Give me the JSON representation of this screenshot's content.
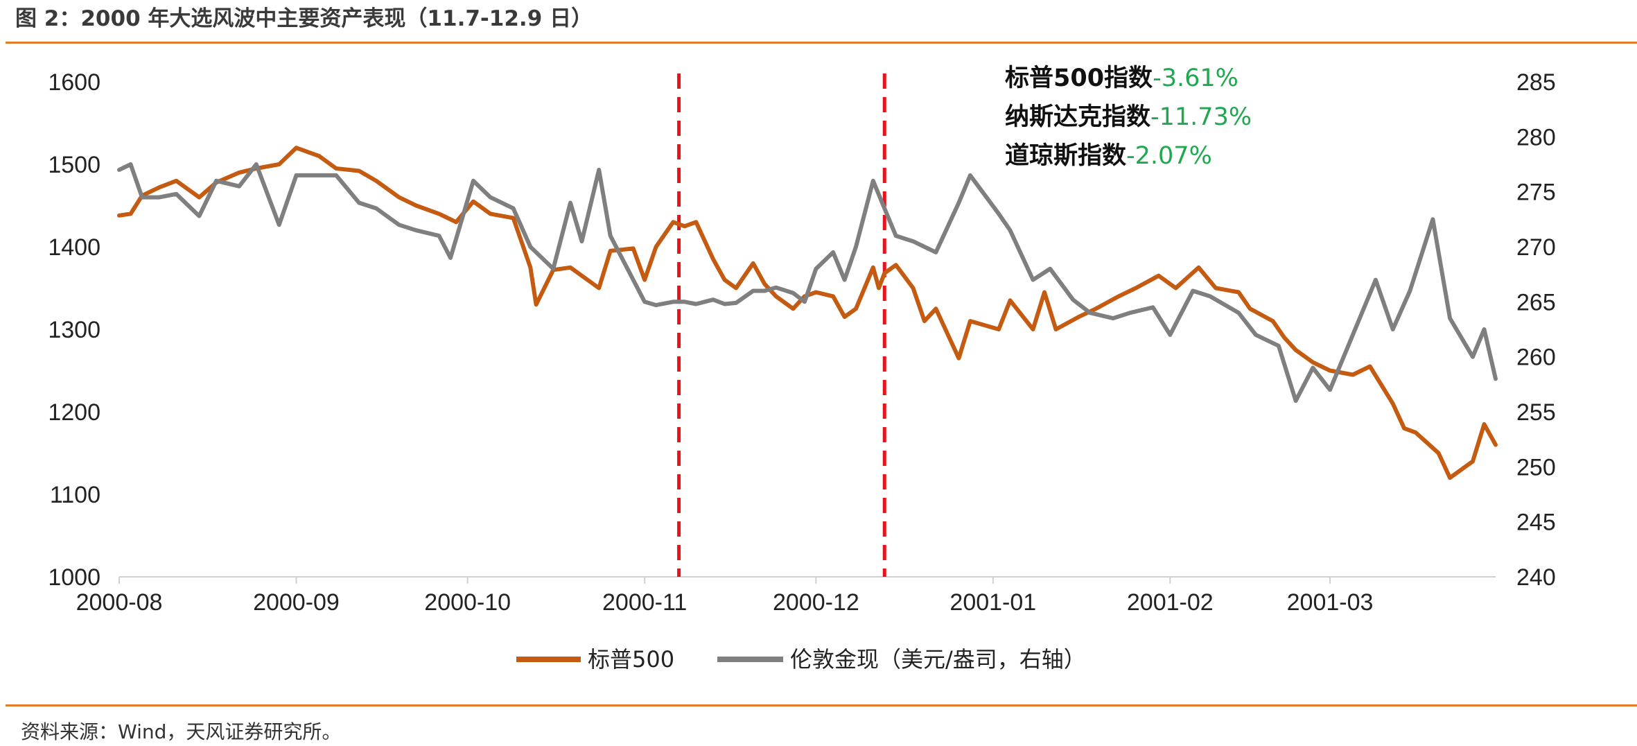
{
  "title": "图 2：2000 年大选风波中主要资产表现（11.7-12.9 日）",
  "source": "资料来源：Wind，天风证券研究所。",
  "colors": {
    "accent_rule": "#e07b26",
    "sp500": "#c55a11",
    "gold": "#7f7f7f",
    "event_line": "#e3141b",
    "annotation_value": "#1fa84f"
  },
  "annotations": [
    {
      "label": "标普500指数",
      "value": "-3.61%"
    },
    {
      "label": "纳斯达克指数",
      "value": "-11.73%"
    },
    {
      "label": "道琼斯指数",
      "value": "-2.07%"
    }
  ],
  "chart_data": {
    "type": "line",
    "x_ticks": [
      "2000-08",
      "2000-09",
      "2000-10",
      "2000-11",
      "2000-12",
      "2001-01",
      "2001-02",
      "2001-03"
    ],
    "x_range": [
      "2000-08-01",
      "2001-03-30"
    ],
    "y_left": {
      "ticks": [
        "1000",
        "1100",
        "1200",
        "1300",
        "1400",
        "1500",
        "1600"
      ],
      "range": [
        1000,
        1600
      ]
    },
    "y_right": {
      "ticks": [
        "240",
        "245",
        "250",
        "255",
        "260",
        "265",
        "270",
        "275",
        "280",
        "285"
      ],
      "range": [
        240,
        285
      ]
    },
    "event_lines": [
      "2000-11-07",
      "2000-12-13"
    ],
    "grid": false,
    "legend_position": "bottom",
    "series": [
      {
        "name": "标普500",
        "axis": "left",
        "points": [
          [
            "2000-08-01",
            1438
          ],
          [
            "2000-08-03",
            1440
          ],
          [
            "2000-08-05",
            1462
          ],
          [
            "2000-08-08",
            1472
          ],
          [
            "2000-08-11",
            1480
          ],
          [
            "2000-08-15",
            1460
          ],
          [
            "2000-08-18",
            1478
          ],
          [
            "2000-08-22",
            1490
          ],
          [
            "2000-08-25",
            1495
          ],
          [
            "2000-08-29",
            1500
          ],
          [
            "2000-09-01",
            1520
          ],
          [
            "2000-09-05",
            1510
          ],
          [
            "2000-09-08",
            1495
          ],
          [
            "2000-09-12",
            1492
          ],
          [
            "2000-09-15",
            1480
          ],
          [
            "2000-09-19",
            1460
          ],
          [
            "2000-09-22",
            1450
          ],
          [
            "2000-09-26",
            1440
          ],
          [
            "2000-09-29",
            1430
          ],
          [
            "2000-10-02",
            1455
          ],
          [
            "2000-10-05",
            1440
          ],
          [
            "2000-10-09",
            1435
          ],
          [
            "2000-10-12",
            1375
          ],
          [
            "2000-10-13",
            1330
          ],
          [
            "2000-10-16",
            1372
          ],
          [
            "2000-10-19",
            1375
          ],
          [
            "2000-10-24",
            1350
          ],
          [
            "2000-10-26",
            1395
          ],
          [
            "2000-10-30",
            1398
          ],
          [
            "2000-11-01",
            1360
          ],
          [
            "2000-11-03",
            1400
          ],
          [
            "2000-11-06",
            1430
          ],
          [
            "2000-11-08",
            1425
          ],
          [
            "2000-11-10",
            1430
          ],
          [
            "2000-11-13",
            1385
          ],
          [
            "2000-11-15",
            1360
          ],
          [
            "2000-11-17",
            1350
          ],
          [
            "2000-11-20",
            1380
          ],
          [
            "2000-11-22",
            1355
          ],
          [
            "2000-11-24",
            1340
          ],
          [
            "2000-11-27",
            1325
          ],
          [
            "2000-11-29",
            1340
          ],
          [
            "2000-12-01",
            1345
          ],
          [
            "2000-12-04",
            1340
          ],
          [
            "2000-12-06",
            1315
          ],
          [
            "2000-12-08",
            1325
          ],
          [
            "2000-12-11",
            1375
          ],
          [
            "2000-12-12",
            1350
          ],
          [
            "2000-12-13",
            1368
          ],
          [
            "2000-12-15",
            1378
          ],
          [
            "2000-12-18",
            1350
          ],
          [
            "2000-12-20",
            1310
          ],
          [
            "2000-12-22",
            1325
          ],
          [
            "2000-12-26",
            1265
          ],
          [
            "2000-12-28",
            1310
          ],
          [
            "2001-01-02",
            1300
          ],
          [
            "2001-01-04",
            1335
          ],
          [
            "2001-01-08",
            1300
          ],
          [
            "2001-01-10",
            1345
          ],
          [
            "2001-01-12",
            1300
          ],
          [
            "2001-01-16",
            1315
          ],
          [
            "2001-01-19",
            1325
          ],
          [
            "2001-01-23",
            1340
          ],
          [
            "2001-01-26",
            1350
          ],
          [
            "2001-01-30",
            1365
          ],
          [
            "2001-02-02",
            1350
          ],
          [
            "2001-02-06",
            1375
          ],
          [
            "2001-02-09",
            1350
          ],
          [
            "2001-02-13",
            1345
          ],
          [
            "2001-02-15",
            1325
          ],
          [
            "2001-02-19",
            1310
          ],
          [
            "2001-02-21",
            1290
          ],
          [
            "2001-02-23",
            1275
          ],
          [
            "2001-02-26",
            1260
          ],
          [
            "2001-03-01",
            1250
          ],
          [
            "2001-03-05",
            1245
          ],
          [
            "2001-03-08",
            1255
          ],
          [
            "2001-03-12",
            1210
          ],
          [
            "2001-03-14",
            1180
          ],
          [
            "2001-03-16",
            1175
          ],
          [
            "2001-03-20",
            1150
          ],
          [
            "2001-03-22",
            1120
          ],
          [
            "2001-03-26",
            1140
          ],
          [
            "2001-03-28",
            1185
          ],
          [
            "2001-03-30",
            1160
          ]
        ]
      },
      {
        "name": "伦敦金现（美元/盎司，右轴）",
        "axis": "right",
        "points": [
          [
            "2000-08-01",
            277
          ],
          [
            "2000-08-03",
            277.5
          ],
          [
            "2000-08-05",
            274.5
          ],
          [
            "2000-08-08",
            274.5
          ],
          [
            "2000-08-11",
            274.8
          ],
          [
            "2000-08-15",
            272.8
          ],
          [
            "2000-08-18",
            276
          ],
          [
            "2000-08-22",
            275.5
          ],
          [
            "2000-08-25",
            277.5
          ],
          [
            "2000-08-29",
            272
          ],
          [
            "2000-09-01",
            276.5
          ],
          [
            "2000-09-05",
            276.5
          ],
          [
            "2000-09-08",
            276.5
          ],
          [
            "2000-09-12",
            274
          ],
          [
            "2000-09-15",
            273.5
          ],
          [
            "2000-09-19",
            272
          ],
          [
            "2000-09-22",
            271.5
          ],
          [
            "2000-09-26",
            271
          ],
          [
            "2000-09-28",
            269
          ],
          [
            "2000-10-02",
            276
          ],
          [
            "2000-10-05",
            274.5
          ],
          [
            "2000-10-09",
            273.5
          ],
          [
            "2000-10-12",
            270
          ],
          [
            "2000-10-16",
            268
          ],
          [
            "2000-10-19",
            274
          ],
          [
            "2000-10-21",
            270.5
          ],
          [
            "2000-10-24",
            277
          ],
          [
            "2000-10-26",
            271
          ],
          [
            "2000-10-30",
            267
          ],
          [
            "2000-11-01",
            265
          ],
          [
            "2000-11-03",
            264.7
          ],
          [
            "2000-11-06",
            265
          ],
          [
            "2000-11-08",
            265
          ],
          [
            "2000-11-10",
            264.8
          ],
          [
            "2000-11-13",
            265.2
          ],
          [
            "2000-11-15",
            264.8
          ],
          [
            "2000-11-17",
            264.9
          ],
          [
            "2000-11-20",
            266
          ],
          [
            "2000-11-22",
            266
          ],
          [
            "2000-11-24",
            266.3
          ],
          [
            "2000-11-27",
            265.8
          ],
          [
            "2000-11-29",
            265
          ],
          [
            "2000-12-01",
            268
          ],
          [
            "2000-12-04",
            269.5
          ],
          [
            "2000-12-06",
            267
          ],
          [
            "2000-12-08",
            270
          ],
          [
            "2000-12-11",
            276
          ],
          [
            "2000-12-13",
            273.5
          ],
          [
            "2000-12-15",
            271
          ],
          [
            "2000-12-18",
            270.5
          ],
          [
            "2000-12-20",
            270
          ],
          [
            "2000-12-22",
            269.5
          ],
          [
            "2000-12-26",
            274
          ],
          [
            "2000-12-28",
            276.5
          ],
          [
            "2001-01-02",
            273
          ],
          [
            "2001-01-04",
            271.5
          ],
          [
            "2001-01-08",
            267
          ],
          [
            "2001-01-11",
            268
          ],
          [
            "2001-01-15",
            265.2
          ],
          [
            "2001-01-18",
            264
          ],
          [
            "2001-01-22",
            263.5
          ],
          [
            "2001-01-25",
            264
          ],
          [
            "2001-01-29",
            264.5
          ],
          [
            "2001-02-01",
            262
          ],
          [
            "2001-02-05",
            266
          ],
          [
            "2001-02-08",
            265.5
          ],
          [
            "2001-02-13",
            264
          ],
          [
            "2001-02-16",
            262
          ],
          [
            "2001-02-20",
            261
          ],
          [
            "2001-02-23",
            256
          ],
          [
            "2001-02-26",
            259
          ],
          [
            "2001-03-01",
            257
          ],
          [
            "2001-03-05",
            262
          ],
          [
            "2001-03-09",
            267
          ],
          [
            "2001-03-12",
            262.5
          ],
          [
            "2001-03-15",
            266
          ],
          [
            "2001-03-19",
            272.5
          ],
          [
            "2001-03-22",
            263.5
          ],
          [
            "2001-03-26",
            260
          ],
          [
            "2001-03-28",
            262.5
          ],
          [
            "2001-03-30",
            258
          ]
        ]
      }
    ]
  }
}
